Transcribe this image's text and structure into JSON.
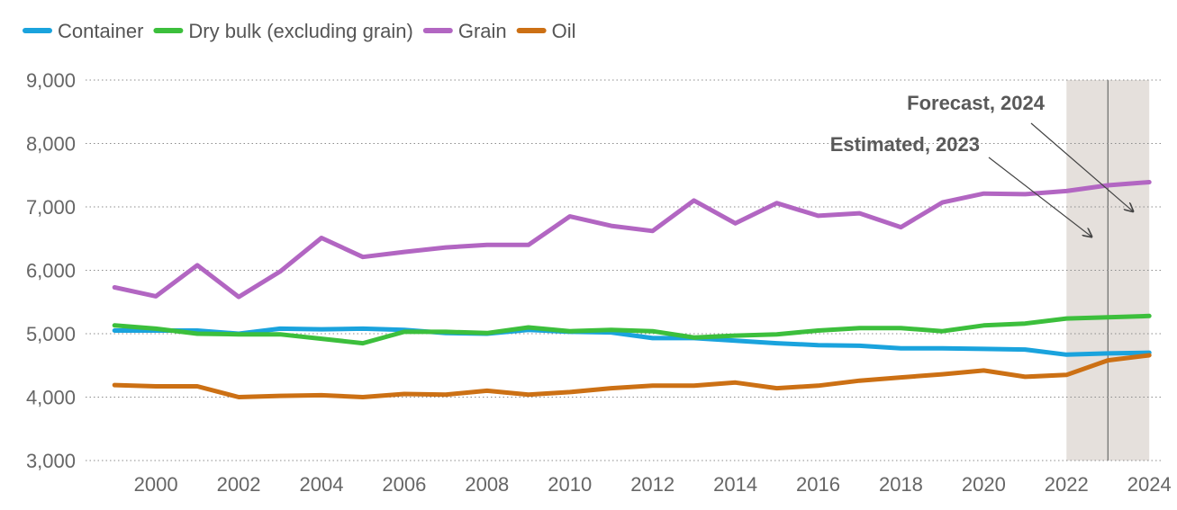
{
  "chart_data": {
    "type": "line",
    "title": "",
    "xlabel": "",
    "ylabel": "",
    "x": [
      1999,
      2000,
      2001,
      2002,
      2003,
      2004,
      2005,
      2006,
      2007,
      2008,
      2009,
      2010,
      2011,
      2012,
      2013,
      2014,
      2015,
      2016,
      2017,
      2018,
      2019,
      2020,
      2021,
      2022,
      2023,
      2024
    ],
    "x_ticks": [
      "2000",
      "2002",
      "2004",
      "2006",
      "2008",
      "2010",
      "2012",
      "2014",
      "2016",
      "2018",
      "2020",
      "2022",
      "2024"
    ],
    "ylim": [
      3000,
      9000
    ],
    "y_ticks": [
      "3,000",
      "4,000",
      "5,000",
      "6,000",
      "7,000",
      "8,000",
      "9,000"
    ],
    "grid": "horizontal dotted",
    "legend_position": "top-left",
    "series": [
      {
        "name": "Container",
        "color": "#1aa3dd",
        "values": [
          5050,
          5050,
          5050,
          5000,
          5080,
          5070,
          5080,
          5060,
          5010,
          5000,
          5060,
          5030,
          5020,
          4930,
          4930,
          4890,
          4850,
          4820,
          4810,
          4770,
          4770,
          4760,
          4750,
          4670,
          4690,
          4700
        ]
      },
      {
        "name": "Dry bulk (excluding grain)",
        "color": "#3cbf3c",
        "values": [
          5130,
          5080,
          5000,
          4990,
          4990,
          4920,
          4850,
          5030,
          5030,
          5010,
          5100,
          5040,
          5060,
          5040,
          4940,
          4970,
          4990,
          5050,
          5090,
          5090,
          5040,
          5130,
          5160,
          5240,
          5260,
          5280
        ]
      },
      {
        "name": "Grain",
        "color": "#b266c2",
        "values": [
          5730,
          5590,
          6080,
          5580,
          5980,
          6510,
          6210,
          6290,
          6360,
          6400,
          6400,
          6850,
          6700,
          6620,
          7100,
          6740,
          7060,
          6860,
          6900,
          6680,
          7070,
          7210,
          7200,
          7250,
          7340,
          7390
        ]
      },
      {
        "name": "Oil",
        "color": "#cc7014",
        "values": [
          4190,
          4170,
          4170,
          4000,
          4020,
          4030,
          4000,
          4050,
          4040,
          4100,
          4040,
          4080,
          4140,
          4180,
          4180,
          4230,
          4140,
          4180,
          4260,
          4310,
          4360,
          4420,
          4320,
          4350,
          4580,
          4660
        ]
      }
    ],
    "shaded_range": [
      2022,
      2024
    ],
    "divider_x": 2023,
    "annotations": [
      {
        "text": "Forecast, 2024",
        "point_x": 2024,
        "point_y": 6900
      },
      {
        "text": "Estimated, 2023",
        "point_x": 2023,
        "point_y": 6500
      }
    ]
  }
}
